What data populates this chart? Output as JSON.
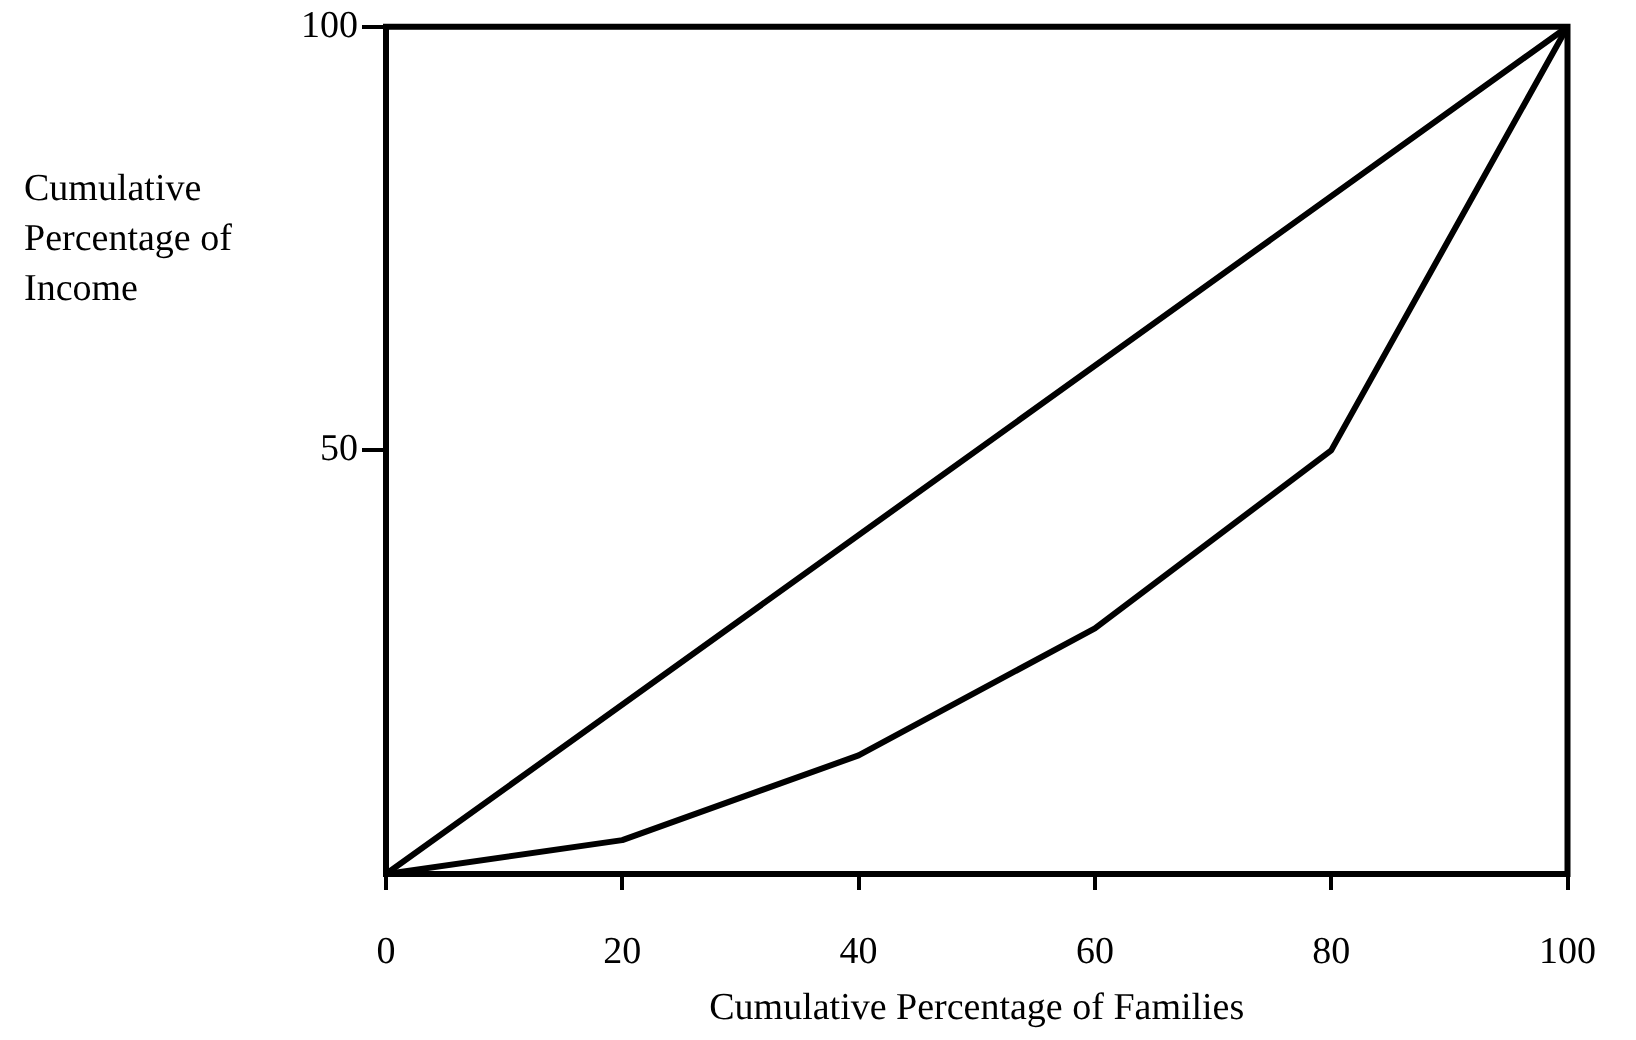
{
  "chart_data": {
    "type": "line",
    "xlabel": "Cumulative Percentage of Families",
    "ylabel": "Cumulative Percentage of Income",
    "series": [
      {
        "color": "#000000",
        "x": [
          0,
          100
        ],
        "values": [
          0,
          100
        ]
      },
      {
        "color": "#000000",
        "x": [
          0,
          20,
          40,
          60,
          80,
          100
        ],
        "values": [
          0,
          4,
          14,
          29,
          50,
          100
        ]
      }
    ],
    "xlim": [
      0,
      100
    ],
    "xticks": [
      0,
      20,
      40,
      60,
      80,
      100
    ],
    "ylim": [
      0,
      100
    ],
    "yticks": [
      50,
      100
    ],
    "grid": false,
    "legend": false,
    "marker": "none",
    "line_style": "solid"
  }
}
